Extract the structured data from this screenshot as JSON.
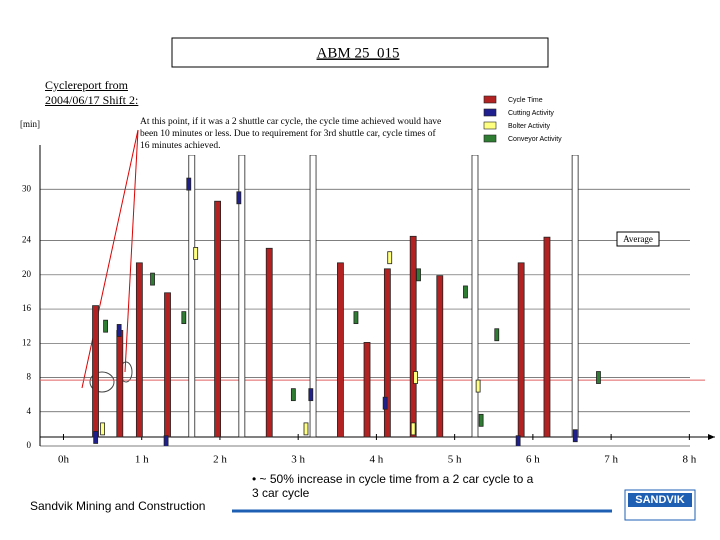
{
  "title": "ABM 25_015",
  "subtitle": "Cyclereport from 2004/06/17 Shift 2:",
  "chart_data": {
    "type": "bar",
    "y_label": "[min]",
    "annotation": "At this point, if it was a 2 shuttle car cycle, the cycle time achieved would have been 10 minutes or less. Due to requirement for 3rd shuttle car, cycle times of 16 minutes achieved.",
    "average": {
      "label": "Average",
      "value": 7.7
    },
    "xlim": [
      -0.3,
      8.2
    ],
    "ylim": [
      0,
      34
    ],
    "yticks": [
      0,
      4,
      8,
      12,
      16,
      20,
      24,
      30
    ],
    "xticks": [
      {
        "value": 0,
        "label": "0h"
      },
      {
        "value": 1,
        "label": "1 h"
      },
      {
        "value": 2,
        "label": "2 h"
      },
      {
        "value": 3,
        "label": "3 h"
      },
      {
        "value": 4,
        "label": "4 h"
      },
      {
        "value": 5,
        "label": "5 h"
      },
      {
        "value": 6,
        "label": "6 h"
      },
      {
        "value": 7,
        "label": "7 h"
      },
      {
        "value": 8,
        "label": "8 h"
      }
    ],
    "grid": true,
    "series": [
      {
        "name": "Cycle Time",
        "color": "#b22222",
        "x": [
          0.41,
          0.72,
          0.97,
          1.33,
          1.64,
          1.97,
          2.28,
          2.63,
          3.19,
          3.54,
          3.88,
          4.14,
          4.47,
          4.81,
          5.26,
          5.85,
          6.18,
          6.54
        ],
        "values": [
          16.4,
          13.5,
          21.4,
          17.9,
          34,
          28.6,
          34,
          23.1,
          34,
          21.4,
          12.1,
          20.7,
          24.5,
          19.9,
          34,
          21.4,
          24.4,
          34
        ]
      },
      {
        "name": "Cutting Activity",
        "color": "#1f1f8f",
        "x": [
          0.45,
          0.75,
          1.35,
          1.64,
          2.28,
          3.2,
          4.15,
          5.85,
          6.58
        ],
        "values": [
          1,
          13.5,
          0.5,
          30.6,
          29,
          6,
          5,
          0.5,
          1.2
        ]
      },
      {
        "name": "Bolter Activity",
        "color": "#ffff80",
        "x": [
          0.5,
          1.69,
          3.1,
          4.17,
          4.47,
          4.5,
          5.3
        ],
        "values": [
          2,
          22.5,
          2,
          22,
          2,
          8,
          7
        ]
      },
      {
        "name": "Conveyor Activity",
        "color": "#2e7d32",
        "x": [
          0.5,
          1.1,
          1.5,
          2.9,
          3.7,
          4.5,
          5.1,
          5.3,
          5.5,
          6.8
        ],
        "values": [
          14,
          19.5,
          15,
          6,
          15,
          20,
          18,
          3,
          13,
          8
        ]
      }
    ]
  },
  "bullet": "• ~ 50% increase in cycle time from a 2 car cycle to a 3 car cycle",
  "footer": "Sandvik Mining and Construction",
  "logo": "SANDVIK"
}
